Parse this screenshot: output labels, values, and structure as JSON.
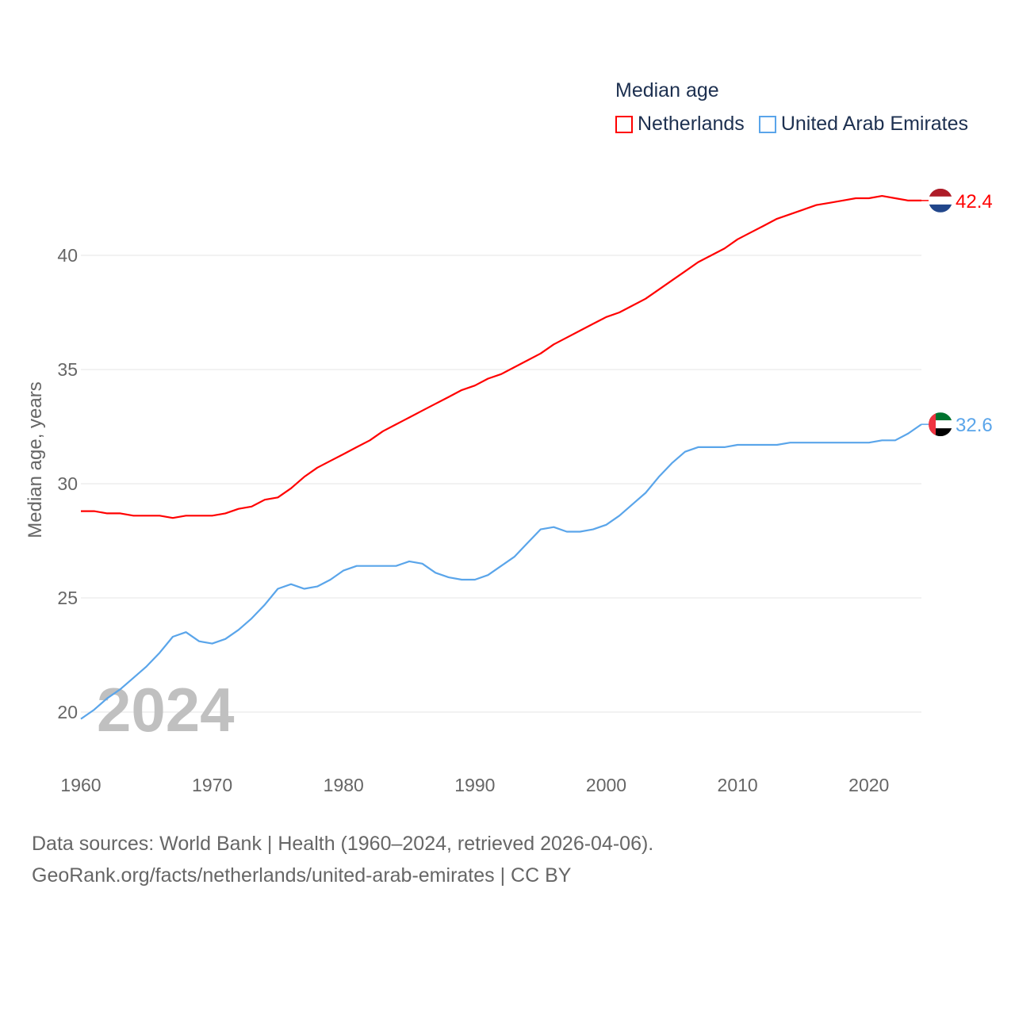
{
  "legend": {
    "title": "Median age",
    "items": [
      {
        "label": "Netherlands",
        "color": "#ff0000"
      },
      {
        "label": "United Arab Emirates",
        "color": "#5aa5ea"
      }
    ]
  },
  "footer": {
    "line1": "Data sources: World Bank | Health (1960–2024, retrieved 2026-04-06).",
    "line2": "GeoRank.org/facts/netherlands/united-arab-emirates | CC BY"
  },
  "chart_data": {
    "type": "line",
    "title": "Median age",
    "xlabel": "",
    "ylabel": "Median age, years",
    "watermark_year": "2024",
    "xlim": [
      1960,
      2024
    ],
    "ylim": [
      18.5,
      43
    ],
    "x_ticks": [
      1960,
      1970,
      1980,
      1990,
      2000,
      2010,
      2020
    ],
    "y_ticks": [
      20,
      25,
      30,
      35,
      40
    ],
    "grid": true,
    "legend_position": "top-right",
    "x": [
      1960,
      1961,
      1962,
      1963,
      1964,
      1965,
      1966,
      1967,
      1968,
      1969,
      1970,
      1971,
      1972,
      1973,
      1974,
      1975,
      1976,
      1977,
      1978,
      1979,
      1980,
      1981,
      1982,
      1983,
      1984,
      1985,
      1986,
      1987,
      1988,
      1989,
      1990,
      1991,
      1992,
      1993,
      1994,
      1995,
      1996,
      1997,
      1998,
      1999,
      2000,
      2001,
      2002,
      2003,
      2004,
      2005,
      2006,
      2007,
      2008,
      2009,
      2010,
      2011,
      2012,
      2013,
      2014,
      2015,
      2016,
      2017,
      2018,
      2019,
      2020,
      2021,
      2022,
      2023,
      2024
    ],
    "series": [
      {
        "name": "Netherlands",
        "color": "#ff0000",
        "end_label": "42.4",
        "values": [
          28.8,
          28.8,
          28.7,
          28.7,
          28.6,
          28.6,
          28.6,
          28.5,
          28.6,
          28.6,
          28.6,
          28.7,
          28.9,
          29.0,
          29.3,
          29.4,
          29.8,
          30.3,
          30.7,
          31.0,
          31.3,
          31.6,
          31.9,
          32.3,
          32.6,
          32.9,
          33.2,
          33.5,
          33.8,
          34.1,
          34.3,
          34.6,
          34.8,
          35.1,
          35.4,
          35.7,
          36.1,
          36.4,
          36.7,
          37.0,
          37.3,
          37.5,
          37.8,
          38.1,
          38.5,
          38.9,
          39.3,
          39.7,
          40.0,
          40.3,
          40.7,
          41.0,
          41.3,
          41.6,
          41.8,
          42.0,
          42.2,
          42.3,
          42.4,
          42.5,
          42.5,
          42.6,
          42.5,
          42.4,
          42.4
        ]
      },
      {
        "name": "United Arab Emirates",
        "color": "#5aa5ea",
        "end_label": "32.6",
        "values": [
          19.7,
          20.1,
          20.6,
          21.0,
          21.5,
          22.0,
          22.6,
          23.3,
          23.5,
          23.1,
          23.0,
          23.2,
          23.6,
          24.1,
          24.7,
          25.4,
          25.6,
          25.4,
          25.5,
          25.8,
          26.2,
          26.4,
          26.4,
          26.4,
          26.4,
          26.6,
          26.5,
          26.1,
          25.9,
          25.8,
          25.8,
          26.0,
          26.4,
          26.8,
          27.4,
          28.0,
          28.1,
          27.9,
          27.9,
          28.0,
          28.2,
          28.6,
          29.1,
          29.6,
          30.3,
          30.9,
          31.4,
          31.6,
          31.6,
          31.6,
          31.7,
          31.7,
          31.7,
          31.7,
          31.8,
          31.8,
          31.8,
          31.8,
          31.8,
          31.8,
          31.8,
          31.9,
          31.9,
          32.2,
          32.6
        ]
      }
    ]
  }
}
